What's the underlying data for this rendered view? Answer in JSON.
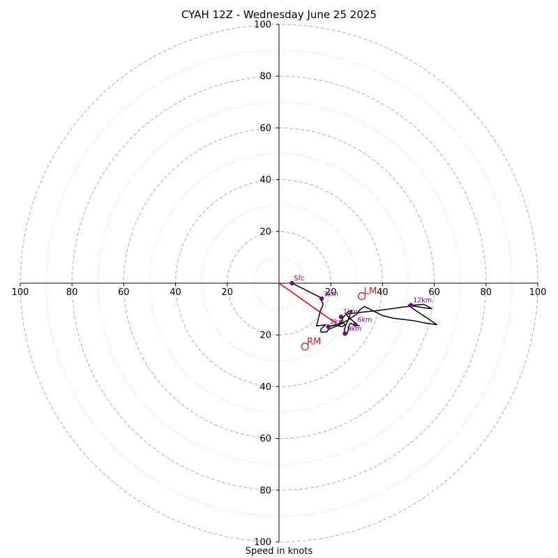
{
  "chart_data": {
    "type": "scatter",
    "subtype": "hodograph",
    "title": "CYAH 12Z - Wednesday June 25 2025",
    "xlabel": "Speed in knots",
    "ylabel": "",
    "xlim": [
      -100,
      100
    ],
    "ylim": [
      -100,
      100
    ],
    "ring_spacing_major": 20,
    "ring_spacing_minor": 10,
    "x_tick_labels": [
      "100",
      "80",
      "60",
      "40",
      "20",
      "20",
      "40",
      "60",
      "80",
      "100"
    ],
    "y_tick_labels": [
      "100",
      "80",
      "60",
      "40",
      "20",
      "20",
      "40",
      "60",
      "80",
      "100"
    ],
    "grid": true,
    "colors": {
      "axes": "#000000",
      "ring_major": "#b5b5b5",
      "ring_minor": "#d0d0d0",
      "hodograph_trace": "#000000",
      "height_markers": "#800080",
      "storm_motion": "#cc1f1f",
      "shear_vector": "#ff0000"
    },
    "hodograph": {
      "u": [
        5,
        11,
        17,
        16.5,
        17,
        16.8,
        16,
        14.5,
        17,
        18,
        16,
        16.3,
        18.5,
        19,
        20,
        22.5,
        24.5,
        27,
        30,
        31,
        33,
        35,
        38,
        40,
        44,
        52,
        57,
        61,
        58,
        55,
        52,
        50,
        53,
        56,
        59,
        56,
        51,
        50,
        48,
        44,
        38,
        32,
        27,
        26,
        27,
        28.5,
        30,
        31,
        29,
        27.5,
        27,
        26.8,
        26.3,
        25.5,
        25,
        25.5,
        27,
        28,
        26.5,
        25,
        24,
        23,
        24.5,
        25.5,
        24.5,
        23.5,
        22,
        20.5,
        19.5,
        19,
        19.5,
        20,
        21,
        22
      ],
      "v": [
        0,
        -3,
        -6,
        -7,
        -8,
        -9,
        -10.5,
        -16.5,
        -16.2,
        -16,
        -18,
        -19,
        -18.8,
        -18,
        -17.5,
        -16.5,
        -15.5,
        -14,
        -12,
        -10.5,
        -9,
        -10,
        -11.5,
        -12.5,
        -13.5,
        -14.5,
        -15.5,
        -16,
        -14,
        -12,
        -10,
        -8.5,
        -9,
        -9.5,
        -9.8,
        -8.2,
        -8.6,
        -9,
        -9.2,
        -9.8,
        -10.6,
        -11.2,
        -11.8,
        -12.2,
        -13.2,
        -14.5,
        -16,
        -16.5,
        -16,
        -15.5,
        -16.5,
        -18,
        -19.5,
        -20,
        -19.5,
        -17,
        -13.5,
        -10.5,
        -11.2,
        -13,
        -14.8,
        -16.5,
        -16.8,
        -16,
        -15,
        -15.5,
        -16.2,
        -16.5,
        -16.8,
        -17.1,
        -16.8,
        -16.5,
        -16.3,
        -16
      ]
    },
    "height_labels": [
      {
        "label": "Sfc",
        "u": 5,
        "v": 0
      },
      {
        "label": "3km",
        "u": 16.5,
        "v": -6
      },
      {
        "label": "6km",
        "u": 29.5,
        "v": -16
      },
      {
        "label": "9km",
        "u": 25.5,
        "v": -19.5
      },
      {
        "label": "12km",
        "u": 51,
        "v": -8.5
      },
      {
        "label": "1km",
        "u": 24,
        "v": -13
      },
      {
        "label": "2km",
        "u": 19,
        "v": -16.8
      }
    ],
    "storm_motion": [
      {
        "label": "RM",
        "u": 10,
        "v": -24.5
      },
      {
        "label": "LM",
        "u": 32,
        "v": -5
      }
    ],
    "shear_vector": {
      "u": 22,
      "v": -15.5
    }
  }
}
